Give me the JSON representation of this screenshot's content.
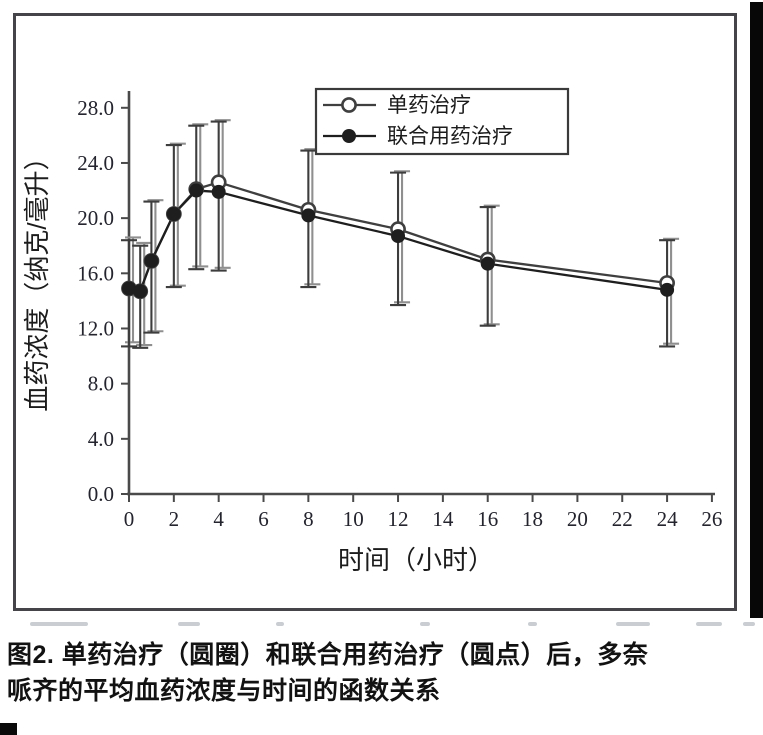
{
  "figure_caption": {
    "full_text": "图2. 单药治疗（圆圈）和联合用药治疗（圆点）后，多奈哌齐的平均血药浓度与时间的函数关系",
    "lines": [
      "图2. 单药治疗（圆圈）和联合用药治疗（圆点）后，多奈",
      "哌齐的平均血药浓度与时间的函数关系"
    ]
  },
  "chart_data": {
    "type": "line",
    "title": "",
    "xlabel": "时间（小时）",
    "ylabel": "血药浓度（纳克/毫升）",
    "xlim": [
      0,
      26
    ],
    "ylim": [
      0,
      29
    ],
    "grid": false,
    "legend_position": "top-right",
    "error_bars": true,
    "x_ticks": [
      0,
      2,
      4,
      6,
      8,
      10,
      12,
      14,
      16,
      18,
      20,
      22,
      24,
      26
    ],
    "y_tick_labels": [
      "0.0",
      "4.0",
      "8.0",
      "12.0",
      "16.0",
      "20.0",
      "24.0",
      "28.0"
    ],
    "x": [
      0,
      0.5,
      1,
      2,
      3,
      4,
      8,
      12,
      16,
      24
    ],
    "series": [
      {
        "name": "单药治疗",
        "id": "monotherapy",
        "marker": "open-circle",
        "color": "#3f3f3f",
        "err_color": "#8f8f8f",
        "values": [
          14.9,
          14.7,
          16.9,
          20.3,
          22.1,
          22.6,
          20.6,
          19.2,
          17.0,
          15.3
        ],
        "err_hi": [
          18.6,
          18.2,
          21.3,
          25.4,
          26.8,
          27.1,
          25.0,
          23.4,
          20.9,
          18.5
        ],
        "err_lo": [
          11.0,
          10.8,
          11.8,
          15.1,
          16.5,
          16.4,
          15.2,
          13.9,
          12.3,
          10.9
        ]
      },
      {
        "name": "联合用药治疗",
        "id": "combination",
        "marker": "filled-circle",
        "color": "#1e1e1e",
        "err_color": "#3d3d3d",
        "values": [
          14.9,
          14.7,
          16.9,
          20.3,
          22.0,
          21.9,
          20.2,
          18.7,
          16.7,
          14.8
        ],
        "err_hi": [
          18.4,
          18.0,
          21.2,
          25.3,
          26.7,
          27.0,
          24.9,
          23.3,
          20.8,
          18.4
        ],
        "err_lo": [
          10.7,
          10.6,
          11.7,
          15.0,
          16.3,
          16.2,
          15.0,
          13.7,
          12.2,
          10.7
        ]
      }
    ]
  }
}
